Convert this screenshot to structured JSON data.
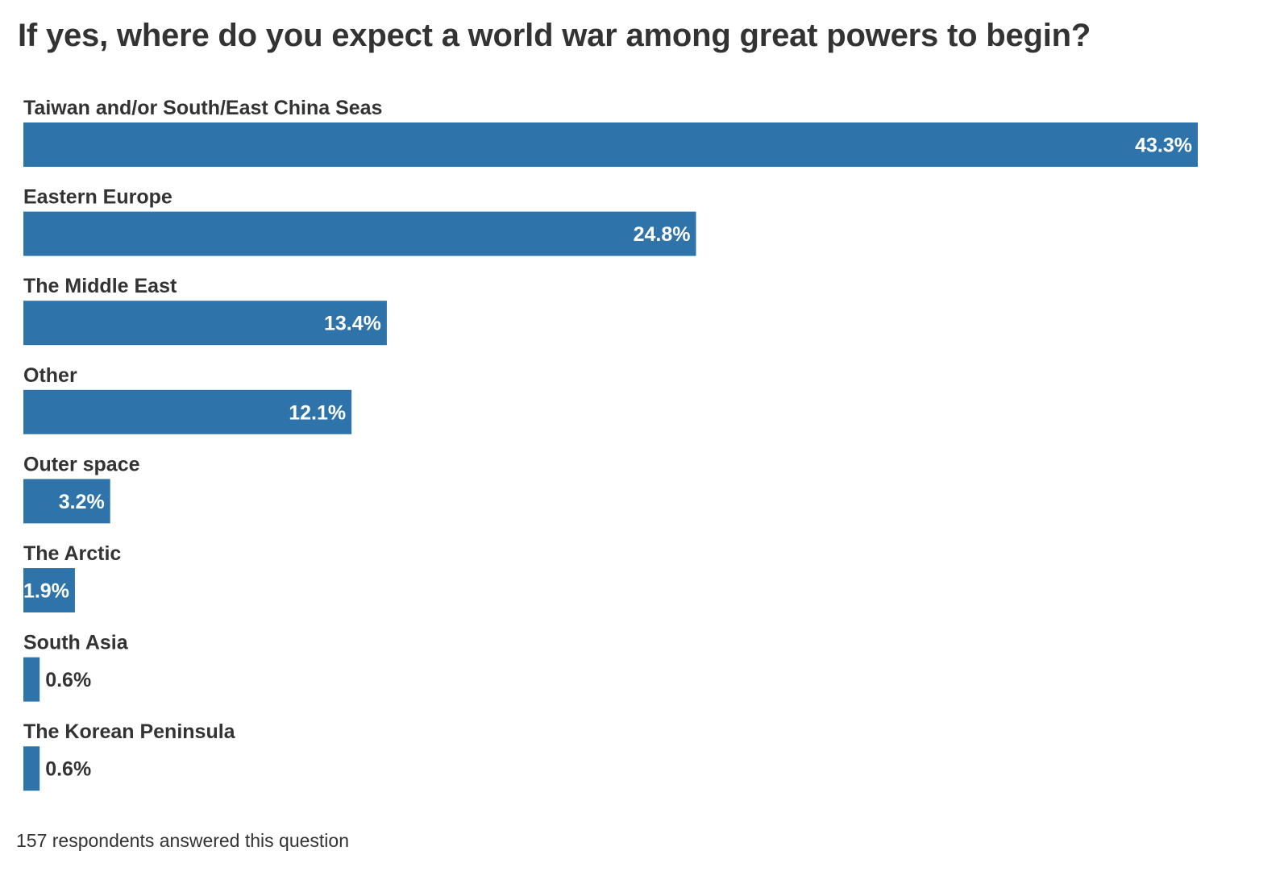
{
  "chart_data": {
    "type": "bar",
    "orientation": "horizontal",
    "title": "If yes, where do you expect a world war among great powers to begin?",
    "categories": [
      "Taiwan and/or South/East China Seas",
      "Eastern Europe",
      "The Middle East",
      "Other",
      "Outer space",
      "The Arctic",
      "South Asia",
      "The Korean Peninsula"
    ],
    "values": [
      43.3,
      24.8,
      13.4,
      12.1,
      3.2,
      1.9,
      0.6,
      0.6
    ],
    "value_labels": [
      "43.3%",
      "24.8%",
      "13.4%",
      "12.1%",
      "3.2%",
      "1.9%",
      "0.6%",
      "0.6%"
    ],
    "xlabel": "",
    "ylabel": "",
    "xlim": [
      0,
      43.3
    ],
    "grid": false,
    "legend": "none",
    "bar_color": "#2e74aa",
    "footnote": "157 respondents answered this question"
  }
}
